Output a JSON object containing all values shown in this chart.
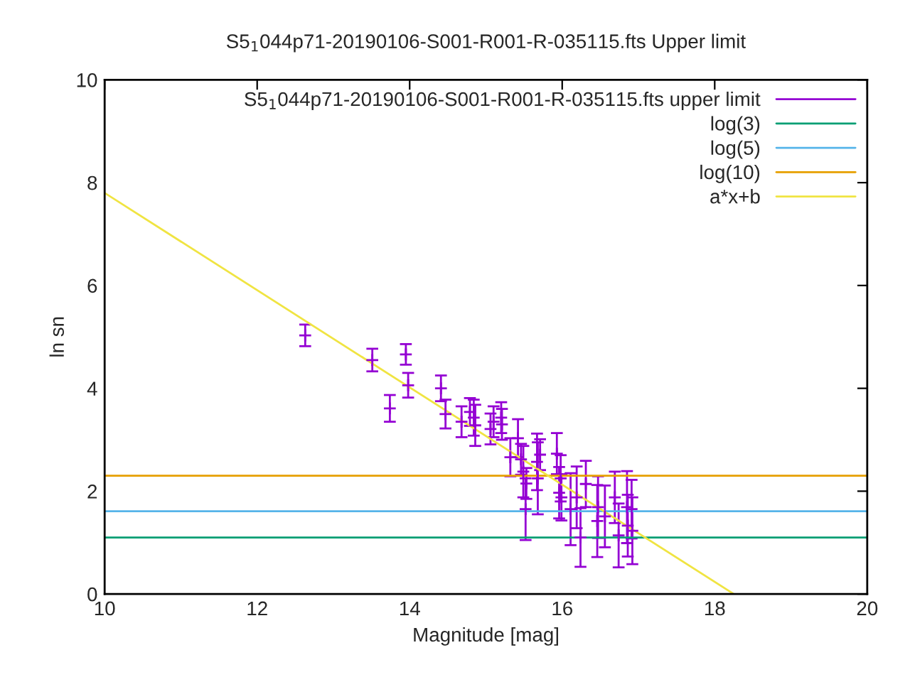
{
  "chart_data": {
    "type": "scatter",
    "title": "S5$_{1}$044p71-20190106-S001-R001-R-035115.fts Upper limit",
    "xlabel": "Magnitude [mag]",
    "ylabel": "ln sn",
    "xlim": [
      10,
      20
    ],
    "xticks": [
      10,
      12,
      14,
      16,
      18,
      20
    ],
    "ylim": [
      0,
      10
    ],
    "yticks": [
      0,
      2,
      4,
      6,
      8,
      10
    ],
    "grid": false,
    "legend": "top right",
    "series": [
      {
        "name": "S5$_{1}$044p71-20190106-S001-R001-R-035115.fts upper limit",
        "marker": "cross",
        "color": "#9400d3",
        "x": [
          12.63,
          13.51,
          13.95,
          13.74,
          13.98,
          14.41,
          14.47,
          14.68,
          14.79,
          14.84,
          14.86,
          15.06,
          15.1,
          15.2,
          15.21,
          15.32,
          15.42,
          15.46,
          15.49,
          15.52,
          15.53,
          15.67,
          15.68,
          15.71,
          15.93,
          15.96,
          15.98,
          15.99,
          16.11,
          16.19,
          16.24,
          16.31,
          16.46,
          16.47,
          16.56,
          16.69,
          16.74,
          16.85,
          16.86,
          16.91,
          16.92
        ],
        "values": [
          5.03,
          4.55,
          4.66,
          3.61,
          4.06,
          4.0,
          3.5,
          3.35,
          3.54,
          3.43,
          3.28,
          3.21,
          3.35,
          3.43,
          3.3,
          2.66,
          3.03,
          2.62,
          2.38,
          1.65,
          2.15,
          2.57,
          2.25,
          2.71,
          2.73,
          1.97,
          2.25,
          1.88,
          1.65,
          1.88,
          1.1,
          2.14,
          1.42,
          1.69,
          1.51,
          1.88,
          1.14,
          1.69,
          1.33,
          1.65,
          1.23
        ],
        "errors": [
          0.21,
          0.22,
          0.2,
          0.26,
          0.24,
          0.25,
          0.28,
          0.3,
          0.27,
          0.35,
          0.4,
          0.3,
          0.3,
          0.3,
          0.3,
          0.37,
          0.37,
          0.3,
          0.5,
          0.6,
          0.3,
          0.55,
          0.7,
          0.3,
          0.4,
          0.5,
          0.45,
          0.45,
          0.7,
          0.6,
          0.57,
          0.45,
          0.7,
          0.6,
          0.6,
          0.5,
          0.62,
          0.7,
          0.6,
          0.57,
          0.65
        ]
      },
      {
        "name": "log(3)",
        "type": "line",
        "color": "#009e73",
        "x": [
          10,
          20
        ],
        "values": [
          1.1,
          1.1
        ]
      },
      {
        "name": "log(5)",
        "type": "line",
        "color": "#56b4e9",
        "x": [
          10,
          20
        ],
        "values": [
          1.61,
          1.61
        ]
      },
      {
        "name": "log(10)",
        "type": "line",
        "color": "#e69f00",
        "x": [
          10,
          20
        ],
        "values": [
          2.3,
          2.3
        ]
      },
      {
        "name": "a*x+b",
        "type": "line",
        "color": "#f0e442",
        "x": [
          10,
          18.25
        ],
        "values": [
          7.8,
          0
        ]
      }
    ]
  }
}
